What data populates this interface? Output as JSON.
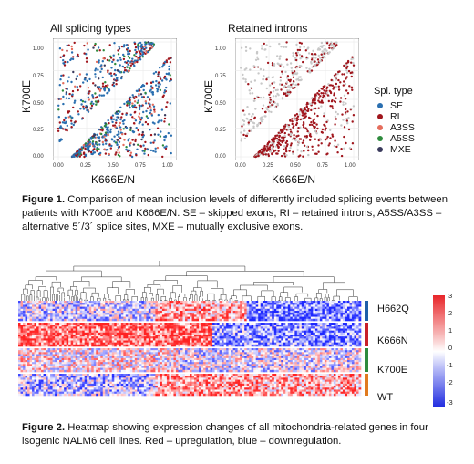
{
  "figure1": {
    "panels": [
      {
        "title": "All splicing types",
        "xlabel": "K666E/N",
        "ylabel": "K700E"
      },
      {
        "title": "Retained introns",
        "xlabel": "K666E/N",
        "ylabel": "K700E"
      }
    ],
    "ticks": [
      "0.00",
      "0.25",
      "0.50",
      "0.75",
      "1.00"
    ],
    "legend": {
      "title": "Spl. type",
      "items": [
        {
          "label": "SE",
          "color": "#2a6fb0"
        },
        {
          "label": "RI",
          "color": "#a0151c"
        },
        {
          "label": "A3SS",
          "color": "#e56d5c"
        },
        {
          "label": "A5SS",
          "color": "#2e8b3d"
        },
        {
          "label": "MXE",
          "color": "#3a3a5c"
        }
      ]
    },
    "caption_label": "Figure 1.",
    "caption_text": " Comparison of mean inclusion levels of differently included splicing events between patients with K700E and K666E/N. SE – skipped exons, RI – retained introns, A5SS/A3SS – alternative 5´/3´ splice sites, MXE – mutually exclusive exons."
  },
  "figure2": {
    "rows": [
      {
        "label": "H662Q",
        "color": "#1f5fa8"
      },
      {
        "label": "K666N",
        "color": "#c8202a"
      },
      {
        "label": "K700E",
        "color": "#2e8b3d"
      },
      {
        "label": "WT",
        "color": "#e07a1f"
      }
    ],
    "colorbar_ticks": [
      "3",
      "2",
      "1",
      "0",
      "-1",
      "-2",
      "-3"
    ],
    "colors": {
      "high": "#e8262a",
      "mid": "#ffffff",
      "low": "#1f2be0"
    },
    "caption_label": "Figure 2.",
    "caption_text": " Heatmap showing expression changes of all mitochondria-related genes in four isogenic NALM6 cell lines. Red – upregulation, blue – downregulation."
  }
}
